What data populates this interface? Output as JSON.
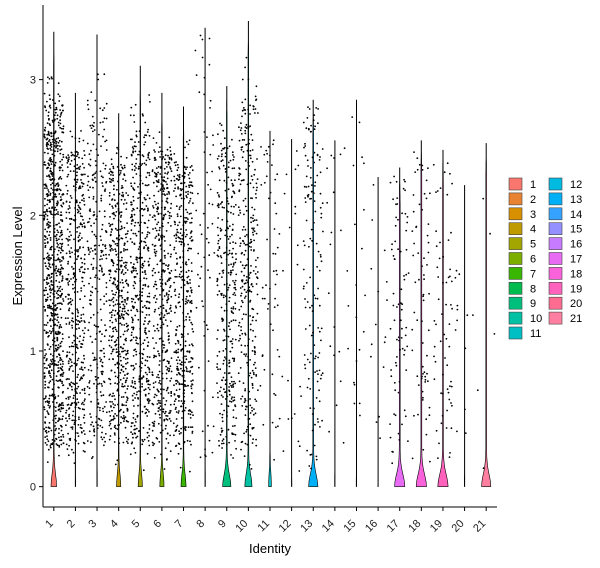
{
  "chart_data": {
    "type": "violin",
    "title": "",
    "xlabel": "Identity",
    "ylabel": "Expression Level",
    "ylim": [
      -0.15,
      3.55
    ],
    "yticks": [
      0,
      1,
      2,
      3
    ],
    "categories": [
      "1",
      "2",
      "3",
      "4",
      "5",
      "6",
      "7",
      "8",
      "9",
      "10",
      "11",
      "12",
      "13",
      "14",
      "15",
      "16",
      "17",
      "18",
      "19",
      "20",
      "21"
    ],
    "colors": [
      "#F8766D",
      "#EA8331",
      "#D89000",
      "#C09B00",
      "#A3A500",
      "#7CAE00",
      "#39B600",
      "#00BB4E",
      "#00BF7D",
      "#00C1A3",
      "#00BFC4",
      "#00BAE0",
      "#00B0F6",
      "#35A2FF",
      "#9590FF",
      "#C77CFF",
      "#E76BF3",
      "#FA62DB",
      "#FF62BC",
      "#FF6C91",
      "#FF7FA0"
    ],
    "violin_max": [
      3.35,
      2.9,
      3.33,
      2.75,
      3.1,
      2.9,
      2.8,
      3.38,
      2.95,
      3.43,
      2.62,
      2.56,
      2.85,
      2.55,
      2.85,
      2.28,
      2.35,
      2.55,
      2.48,
      2.22,
      2.53
    ],
    "violin_peak": [
      0.27,
      0.01,
      0.01,
      0.2,
      0.2,
      0.2,
      0.24,
      0.01,
      0.4,
      0.35,
      0.13,
      0.01,
      0.45,
      0.01,
      0.01,
      0.01,
      0.5,
      0.5,
      0.5,
      0.01,
      0.45
    ],
    "point_density": [
      2600,
      1400,
      900,
      1500,
      1400,
      1400,
      1300,
      200,
      1000,
      1000,
      180,
      70,
      450,
      60,
      70,
      50,
      250,
      220,
      200,
      40,
      15
    ],
    "legend": {
      "placement": "right",
      "columns": [
        [
          "1",
          "2",
          "3",
          "4",
          "5",
          "6",
          "7",
          "8",
          "9",
          "10",
          "11"
        ],
        [
          "12",
          "13",
          "14",
          "15",
          "16",
          "17",
          "18",
          "19",
          "20",
          "21"
        ]
      ]
    }
  }
}
